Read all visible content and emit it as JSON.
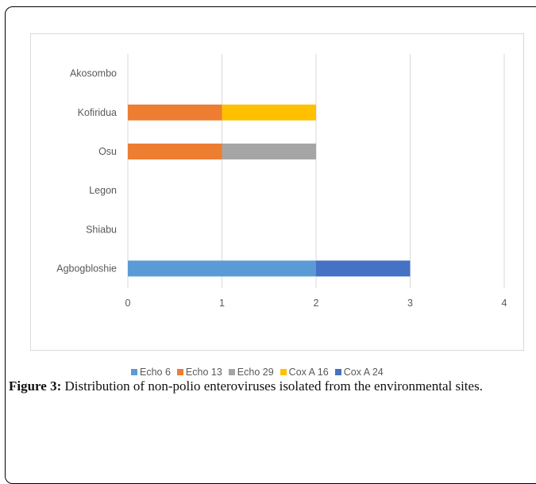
{
  "caption": {
    "label": "Figure 3:",
    "text": " Distribution of non-polio enteroviruses isolated from the environmental sites."
  },
  "chart_data": {
    "type": "bar",
    "orientation": "horizontal",
    "stacked": true,
    "categories": [
      "Agbogbloshie",
      "Shiabu",
      "Legon",
      "Osu",
      "Kofiridua",
      "Akosombo"
    ],
    "series": [
      {
        "name": "Echo 6",
        "color": "#5b9bd5",
        "values": [
          2,
          0,
          0,
          0,
          0,
          0
        ]
      },
      {
        "name": "Echo 13",
        "color": "#ed7d31",
        "values": [
          0,
          0,
          0,
          1,
          1,
          0
        ]
      },
      {
        "name": "Echo 29",
        "color": "#a5a5a5",
        "values": [
          0,
          0,
          0,
          1,
          0,
          0
        ]
      },
      {
        "name": "Cox A 16",
        "color": "#ffc000",
        "values": [
          0,
          0,
          0,
          0,
          1,
          0
        ]
      },
      {
        "name": "Cox A 24",
        "color": "#4472c4",
        "values": [
          1,
          0,
          0,
          0,
          0,
          0
        ]
      }
    ],
    "xlim": [
      0,
      4
    ],
    "xticks": [
      "0",
      "1",
      "2",
      "3",
      "4"
    ],
    "grid": true,
    "legend_position": "bottom"
  }
}
